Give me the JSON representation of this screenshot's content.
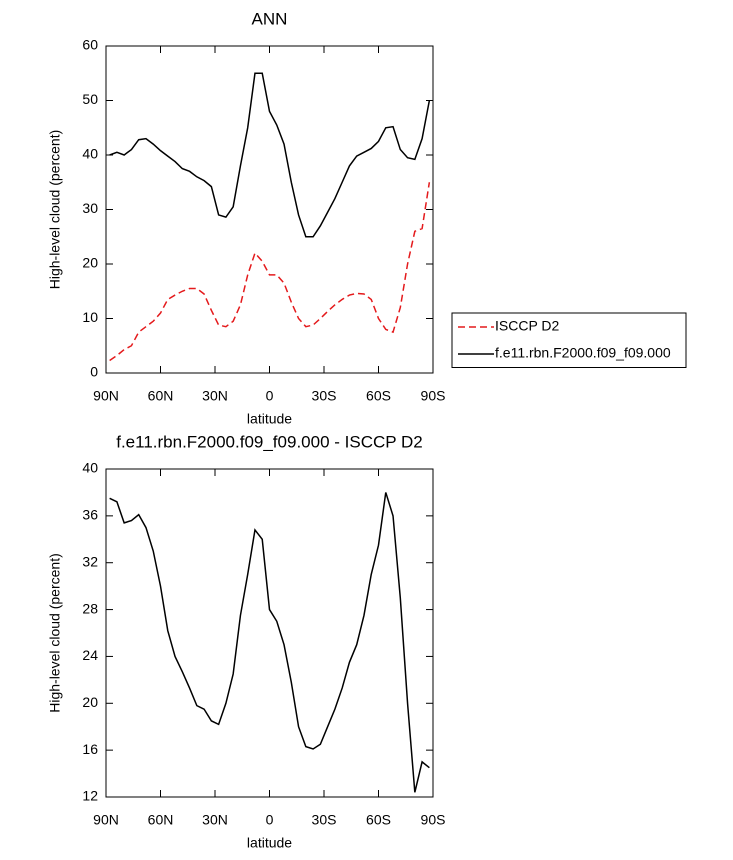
{
  "chart_data": [
    {
      "type": "line",
      "title": "ANN",
      "xlabel": "latitude",
      "ylabel": "High-level cloud (percent)",
      "x": [
        88,
        84,
        80,
        76,
        72,
        68,
        64,
        60,
        56,
        52,
        48,
        44,
        40,
        36,
        32,
        28,
        24,
        20,
        16,
        12,
        8,
        4,
        0,
        -4,
        -8,
        -12,
        -16,
        -20,
        -24,
        -28,
        -32,
        -36,
        -40,
        -44,
        -48,
        -52,
        -56,
        -60,
        -64,
        -68,
        -72,
        -76,
        -80,
        -84,
        -88
      ],
      "series": [
        {
          "name": "ISCCP D2",
          "color": "#e41a1c",
          "style": "dashed",
          "values": [
            2.3,
            3.2,
            4.3,
            5,
            7.5,
            8.5,
            9.5,
            11,
            13.5,
            14.3,
            15,
            15.5,
            15.5,
            14.5,
            11.5,
            8.8,
            8.5,
            9.5,
            12.5,
            18,
            22,
            20.5,
            18,
            18,
            16.5,
            13,
            10,
            8.5,
            8.8,
            10,
            11.3,
            12.5,
            13.5,
            14.3,
            14.6,
            14.5,
            13.5,
            10,
            8,
            7.5,
            12,
            20,
            26,
            26.5,
            35
          ]
        },
        {
          "name": "f.e11.rbn.F2000.f09_f09.000",
          "color": "#000000",
          "style": "solid",
          "values": [
            40,
            40.5,
            40,
            41,
            42.8,
            43,
            42,
            40.8,
            39.8,
            38.8,
            37.5,
            37,
            36,
            35.3,
            34.2,
            29,
            28.6,
            30.5,
            38,
            45,
            55,
            55,
            48,
            45.5,
            42,
            35,
            29,
            25,
            25,
            27,
            29.5,
            32,
            35,
            38,
            39.8,
            40.5,
            41.2,
            42.5,
            45,
            45.2,
            41,
            39.5,
            39.2,
            43,
            50
          ]
        }
      ],
      "xlim": [
        90,
        -90
      ],
      "xticks": [
        {
          "value": 90,
          "label": "90N"
        },
        {
          "value": 60,
          "label": "60N"
        },
        {
          "value": 30,
          "label": "30N"
        },
        0,
        {
          "value": -30,
          "label": "30S"
        },
        {
          "value": -60,
          "label": "60S"
        },
        {
          "value": -90,
          "label": "90S"
        }
      ],
      "ylim": [
        0,
        60
      ],
      "yticks": [
        0,
        10,
        20,
        30,
        40,
        50,
        60
      ],
      "legend": "outside-right"
    },
    {
      "type": "line",
      "title": "f.e11.rbn.F2000.f09_f09.000 - ISCCP D2",
      "xlabel": "latitude",
      "ylabel": "High-level cloud (percent)",
      "x": [
        88,
        84,
        80,
        76,
        72,
        68,
        64,
        60,
        56,
        52,
        48,
        44,
        40,
        36,
        32,
        28,
        24,
        20,
        16,
        12,
        8,
        4,
        0,
        -4,
        -8,
        -12,
        -16,
        -20,
        -24,
        -28,
        -32,
        -36,
        -40,
        -44,
        -48,
        -52,
        -56,
        -60,
        -64,
        -68,
        -72,
        -76,
        -80,
        -84,
        -88
      ],
      "series": [
        {
          "color": "#000000",
          "style": "solid",
          "values": [
            37.5,
            37.2,
            35.4,
            35.6,
            36.1,
            35,
            33,
            30,
            26.2,
            24,
            22.7,
            21.3,
            19.8,
            19.5,
            18.5,
            18.2,
            20,
            22.5,
            27.5,
            31,
            34.8,
            34,
            28,
            27,
            25,
            21.8,
            18,
            16.3,
            16.1,
            16.5,
            18,
            19.5,
            21.3,
            23.5,
            25,
            27.5,
            31,
            33.5,
            38,
            36,
            29,
            20,
            12.4,
            15,
            14.5
          ]
        }
      ],
      "xlim": [
        90,
        -90
      ],
      "xticks": [
        {
          "value": 90,
          "label": "90N"
        },
        {
          "value": 60,
          "label": "60N"
        },
        {
          "value": 30,
          "label": "30N"
        },
        0,
        {
          "value": -30,
          "label": "30S"
        },
        {
          "value": -60,
          "label": "60S"
        },
        {
          "value": -90,
          "label": "90S"
        }
      ],
      "ylim": [
        12,
        40
      ],
      "yticks": [
        12,
        16,
        20,
        24,
        28,
        32,
        36,
        40
      ]
    }
  ]
}
